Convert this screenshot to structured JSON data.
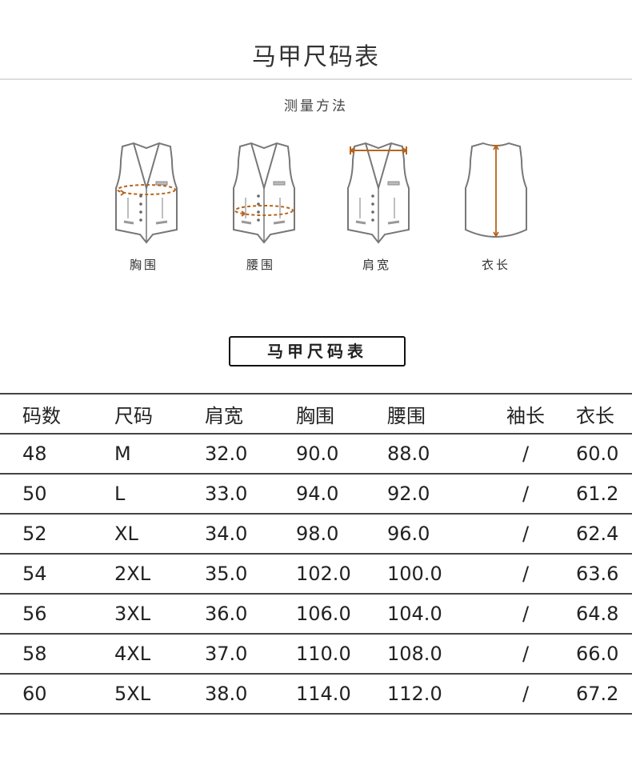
{
  "title": "马甲尺码表",
  "measure_title": "测量方法",
  "measures": [
    {
      "label": "胸围"
    },
    {
      "label": "腰围"
    },
    {
      "label": "肩宽"
    },
    {
      "label": "衣长"
    }
  ],
  "accent_color": "#b5651d",
  "table_title": "马甲尺码表",
  "table": {
    "headers": [
      "码数",
      "尺码",
      "肩宽",
      "胸围",
      "腰围",
      "袖长",
      "衣长"
    ],
    "rows": [
      [
        "48",
        "M",
        "32.0",
        "90.0",
        "88.0",
        "/",
        "60.0"
      ],
      [
        "50",
        "L",
        "33.0",
        "94.0",
        "92.0",
        "/",
        "61.2"
      ],
      [
        "52",
        "XL",
        "34.0",
        "98.0",
        "96.0",
        "/",
        "62.4"
      ],
      [
        "54",
        "2XL",
        "35.0",
        "102.0",
        "100.0",
        "/",
        "63.6"
      ],
      [
        "56",
        "3XL",
        "36.0",
        "106.0",
        "104.0",
        "/",
        "64.8"
      ],
      [
        "58",
        "4XL",
        "37.0",
        "110.0",
        "108.0",
        "/",
        "66.0"
      ],
      [
        "60",
        "5XL",
        "38.0",
        "114.0",
        "112.0",
        "/",
        "67.2"
      ]
    ]
  }
}
